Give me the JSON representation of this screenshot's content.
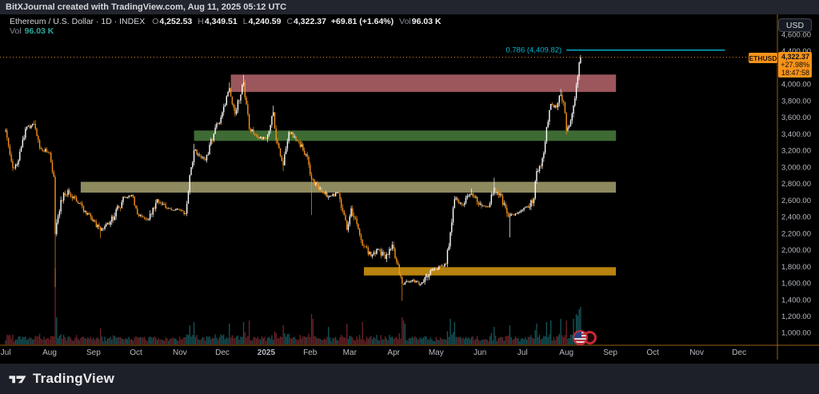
{
  "topbar": {
    "text": "BitXJournal created with TradingView.com, Aug 11, 2025 05:12 UTC"
  },
  "legend": {
    "title": "Ethereum / U.S. Dollar · 1D · INDEX",
    "o_label": "O",
    "o": "4,252.53",
    "h_label": "H",
    "h": "4,349.51",
    "l_label": "L",
    "l": "4,240.59",
    "c_label": "C",
    "c": "4,322.37",
    "change": "+69.81 (+1.64%)",
    "vol_label": "Vol",
    "vol": "96.03 K",
    "vol_row_label": "Vol",
    "vol_row_value": "96.03 K"
  },
  "price_scale": {
    "currency_button": "USD",
    "symbol_label": "ETHUSD",
    "last_price": "4,322.37",
    "change_pct": "+27.98%",
    "countdown": "18:47:58"
  },
  "footer": {
    "brand": "TradingView"
  },
  "colors": {
    "background": "#000000",
    "chrome_bg": "#22252e",
    "footer_bg": "#1d2028",
    "up": "#ffffff",
    "down": "#f7931a",
    "vol_up": "#17565a",
    "vol_down": "#6e2429",
    "axis_line": "#9a5e12",
    "axis_text": "#b9bcc3",
    "accent_orange": "#f7931a",
    "fib_cyan": "#00b7d4",
    "legend_teal": "#2ea89a"
  },
  "chart_data": {
    "type": "candlestick",
    "symbol": "Ethereum / U.S. Dollar",
    "interval": "1D",
    "exchange": "INDEX",
    "epoch_date": "2024-07-01",
    "ylim": [
      848,
      4841
    ],
    "xlim_days": [
      -4,
      545
    ],
    "price_ticks": {
      "min": 1000,
      "max": 4600,
      "step": 200
    },
    "months": {
      "labels": [
        "Jul",
        "Aug",
        "Sep",
        "Oct",
        "Nov",
        "Dec",
        "2025",
        "Feb",
        "Mar",
        "Apr",
        "May",
        "Jun",
        "Jul",
        "Aug",
        "Sep",
        "Oct",
        "Nov",
        "Dec"
      ],
      "days": [
        0,
        31,
        62,
        92,
        123,
        153,
        184,
        215,
        243,
        274,
        304,
        335,
        365,
        396,
        427,
        457,
        488,
        518
      ]
    },
    "last_candle": {
      "open": 4252.53,
      "high": 4349.51,
      "low": 4240.59,
      "close": 4322.37
    },
    "price_line": {
      "price": 4322.37
    },
    "fib": {
      "label": "0.786 (4,409.82)",
      "level": 0.786,
      "price": 4409.82,
      "day_start": 396,
      "day_end": 508,
      "color": "#00b7d4"
    },
    "zones": [
      {
        "name": "red-supply",
        "color": "#9b575c",
        "price_top": 4115,
        "price_bottom": 3905,
        "day_start": 159,
        "day_end": 431
      },
      {
        "name": "green-level",
        "color": "#3e6a33",
        "price_top": 3440,
        "price_bottom": 3315,
        "day_start": 133,
        "day_end": 431
      },
      {
        "name": "khaki-level",
        "color": "#8e8a5f",
        "price_top": 2820,
        "price_bottom": 2690,
        "day_start": 53,
        "day_end": 431
      },
      {
        "name": "gold-demand",
        "color": "#b8830f",
        "price_top": 1790,
        "price_bottom": 1690,
        "day_start": 253,
        "day_end": 431
      }
    ],
    "anchors": [
      [
        0,
        3440
      ],
      [
        3,
        3150
      ],
      [
        5,
        2990,
        2950
      ],
      [
        9,
        3080
      ],
      [
        14,
        3460
      ],
      [
        20,
        3520,
        null,
        3560
      ],
      [
        24,
        3230
      ],
      [
        31,
        3170
      ],
      [
        34,
        2880
      ],
      [
        35,
        2190,
        1550
      ],
      [
        39,
        2600
      ],
      [
        44,
        2720
      ],
      [
        50,
        2580
      ],
      [
        58,
        2440
      ],
      [
        67,
        2230,
        2140
      ],
      [
        74,
        2340
      ],
      [
        84,
        2630
      ],
      [
        89,
        2660
      ],
      [
        93,
        2430
      ],
      [
        101,
        2370
      ],
      [
        107,
        2610
      ],
      [
        114,
        2500
      ],
      [
        123,
        2480
      ],
      [
        127,
        2440
      ],
      [
        130,
        2900
      ],
      [
        133,
        3200,
        null,
        3280
      ],
      [
        141,
        3080
      ],
      [
        147,
        3400
      ],
      [
        153,
        3660
      ],
      [
        158,
        3950,
        null,
        4020
      ],
      [
        162,
        3640
      ],
      [
        168,
        4020,
        null,
        4110
      ],
      [
        172,
        3460
      ],
      [
        178,
        3360
      ],
      [
        184,
        3340
      ],
      [
        189,
        3660,
        null,
        3740
      ],
      [
        191,
        3320
      ],
      [
        196,
        3020,
        2950
      ],
      [
        200,
        3420
      ],
      [
        207,
        3300
      ],
      [
        213,
        3120
      ],
      [
        216,
        2850,
        2420
      ],
      [
        222,
        2750
      ],
      [
        228,
        2640
      ],
      [
        235,
        2680
      ],
      [
        241,
        2240
      ],
      [
        244,
        2500
      ],
      [
        252,
        2050
      ],
      [
        258,
        1920
      ],
      [
        263,
        2010
      ],
      [
        268,
        1890
      ],
      [
        273,
        2060
      ],
      [
        277,
        1820
      ],
      [
        280,
        1590,
        1385
      ],
      [
        283,
        1620
      ],
      [
        287,
        1630
      ],
      [
        293,
        1590
      ],
      [
        300,
        1750
      ],
      [
        307,
        1800
      ],
      [
        311,
        1830
      ],
      [
        314,
        2210
      ],
      [
        317,
        2610
      ],
      [
        322,
        2550
      ],
      [
        329,
        2680,
        null,
        2740
      ],
      [
        336,
        2530
      ],
      [
        341,
        2520
      ],
      [
        345,
        2750,
        null,
        2870
      ],
      [
        352,
        2560
      ],
      [
        356,
        2410,
        2150
      ],
      [
        360,
        2440
      ],
      [
        365,
        2480
      ],
      [
        369,
        2510
      ],
      [
        373,
        2620
      ],
      [
        375,
        2950
      ],
      [
        378,
        3010
      ],
      [
        380,
        3170
      ],
      [
        382,
        3480
      ],
      [
        385,
        3760
      ],
      [
        389,
        3720
      ],
      [
        392,
        3870,
        null,
        3940
      ],
      [
        394,
        3780
      ],
      [
        395,
        3650
      ],
      [
        396,
        3440,
        3390
      ],
      [
        399,
        3560
      ],
      [
        401,
        3740
      ],
      [
        403,
        3990
      ],
      [
        404,
        4090
      ],
      [
        405,
        4260
      ],
      [
        406,
        4322
      ]
    ],
    "volume_spikes": [
      [
        35,
        95
      ],
      [
        36,
        34
      ],
      [
        67,
        20
      ],
      [
        130,
        24
      ],
      [
        133,
        28
      ],
      [
        158,
        26
      ],
      [
        168,
        28
      ],
      [
        172,
        30
      ],
      [
        196,
        24
      ],
      [
        216,
        38
      ],
      [
        217,
        32
      ],
      [
        228,
        22
      ],
      [
        241,
        26
      ],
      [
        252,
        28
      ],
      [
        280,
        34
      ],
      [
        281,
        30
      ],
      [
        282,
        26
      ],
      [
        314,
        32
      ],
      [
        317,
        28
      ],
      [
        345,
        22
      ],
      [
        356,
        24
      ],
      [
        375,
        26
      ],
      [
        382,
        28
      ],
      [
        385,
        30
      ],
      [
        392,
        32
      ],
      [
        396,
        30
      ],
      [
        401,
        32
      ],
      [
        403,
        38
      ],
      [
        404,
        36
      ],
      [
        405,
        44
      ],
      [
        406,
        47
      ]
    ]
  }
}
